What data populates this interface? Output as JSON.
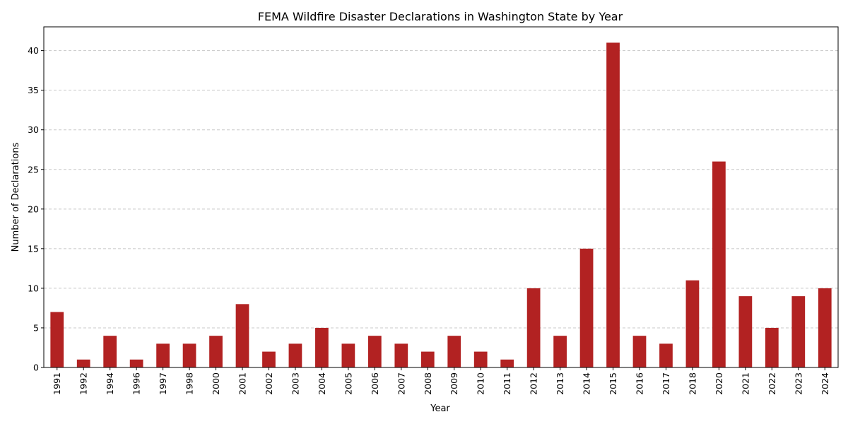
{
  "chart_data": {
    "type": "bar",
    "title": "FEMA Wildfire Disaster Declarations in Washington State by Year",
    "xlabel": "Year",
    "ylabel": "Number of Declarations",
    "categories": [
      "1991",
      "1992",
      "1994",
      "1996",
      "1997",
      "1998",
      "2000",
      "2001",
      "2002",
      "2003",
      "2004",
      "2005",
      "2006",
      "2007",
      "2008",
      "2009",
      "2010",
      "2011",
      "2012",
      "2013",
      "2014",
      "2015",
      "2016",
      "2017",
      "2018",
      "2020",
      "2021",
      "2022",
      "2023",
      "2024"
    ],
    "values": [
      7,
      1,
      4,
      1,
      3,
      3,
      4,
      8,
      2,
      3,
      5,
      3,
      4,
      3,
      2,
      4,
      2,
      1,
      10,
      4,
      15,
      41,
      4,
      3,
      11,
      26,
      9,
      5,
      9,
      10
    ],
    "ylim": [
      0,
      43
    ],
    "yticks": [
      0,
      5,
      10,
      15,
      20,
      25,
      30,
      35,
      40
    ],
    "grid": "y-dashed",
    "bar_color": "#b22222",
    "grid_color": "#c8c8c8"
  }
}
